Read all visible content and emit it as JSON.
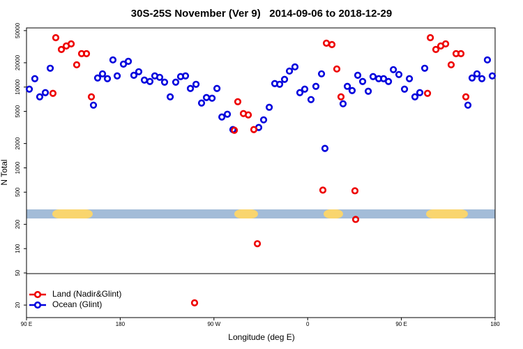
{
  "chart_data": {
    "type": "scatter",
    "title": "30S-25S November (Ver 9)   2014-09-06 to 2018-12-29",
    "xlabel": "Longitude (deg E)",
    "ylabel": "N Total",
    "xlim": [
      90,
      540
    ],
    "ylim": [
      14,
      54000
    ],
    "log_y": true,
    "legend": "lower left",
    "xticks": [
      {
        "value": 90,
        "label": "90 E"
      },
      180,
      {
        "value": 270,
        "label": "90 W"
      },
      {
        "value": 360,
        "label": "0"
      },
      {
        "value": 450,
        "label": "90 E"
      },
      {
        "value": 540,
        "label": "180"
      }
    ],
    "yticks": [
      20,
      50,
      100,
      200,
      500,
      1000,
      2000,
      5000,
      10000,
      20000,
      50000
    ],
    "series": [
      {
        "name": "Land (Nadir&Glint)",
        "color": "#ee0000",
        "x": [
          115.4,
          118.1,
          123.5,
          128.2,
          132.9,
          138.2,
          142.9,
          147.6,
          152.3,
          251.4,
          289.6,
          292.9,
          298.3,
          303.0,
          308.3,
          311.7,
          374.6,
          378.0,
          383.3,
          388.0,
          392.0,
          405.4,
          406.1,
          475.1,
          477.8,
          483.1,
          487.8,
          492.5,
          497.8,
          502.5,
          507.2,
          511.9
        ],
        "values": [
          8360,
          40900,
          29200,
          32250,
          34230,
          18880,
          25930,
          25930,
          7570,
          21.3,
          2920,
          6590,
          4700,
          4520,
          2980,
          115,
          530,
          34920,
          33570,
          16750,
          7570,
          520,
          230,
          8360,
          40900,
          29200,
          32250,
          34230,
          18880,
          25930,
          25930,
          7570
        ]
      },
      {
        "name": "Ocean (Glint)",
        "color": "#0000dd",
        "x": [
          92.7,
          98.0,
          102.7,
          108.1,
          112.8,
          154.3,
          158.3,
          163.0,
          167.7,
          173.0,
          177.1,
          183.1,
          187.8,
          193.1,
          197.8,
          203.2,
          208.5,
          213.2,
          217.9,
          222.6,
          228.0,
          233.3,
          238.0,
          242.7,
          247.4,
          252.8,
          258.1,
          262.8,
          268.2,
          272.9,
          277.6,
          282.9,
          288.2,
          313.0,
          317.7,
          323.1,
          328.4,
          333.1,
          337.8,
          342.5,
          347.8,
          352.5,
          357.2,
          363.2,
          367.9,
          373.3,
          376.6,
          394.0,
          398.1,
          402.7,
          408.1,
          412.8,
          418.2,
          422.8,
          428.2,
          432.9,
          437.6,
          442.3,
          447.6,
          453.0,
          457.7,
          463.0,
          467.7,
          472.4,
          513.9,
          517.9,
          522.6,
          527.3,
          532.6,
          537.3
        ],
        "values": [
          9420,
          12690,
          7570,
          8530,
          17100,
          5970,
          12950,
          14580,
          12690,
          21700,
          13740,
          19250,
          20840,
          14000,
          15480,
          12200,
          11720,
          13740,
          13200,
          11490,
          7570,
          11490,
          13470,
          13740,
          9610,
          10820,
          6340,
          7420,
          7280,
          9610,
          4260,
          4610,
          2980,
          3160,
          3930,
          5620,
          11040,
          10820,
          12440,
          15780,
          17780,
          8530,
          9420,
          7000,
          10210,
          14580,
          1740,
          6210,
          10210,
          9060,
          14000,
          11720,
          8880,
          13470,
          12690,
          12690,
          11720,
          16430,
          14290,
          9420,
          12690,
          7570,
          8530,
          17100,
          5970,
          12950,
          14580,
          12690,
          21700,
          13740
        ]
      }
    ]
  }
}
